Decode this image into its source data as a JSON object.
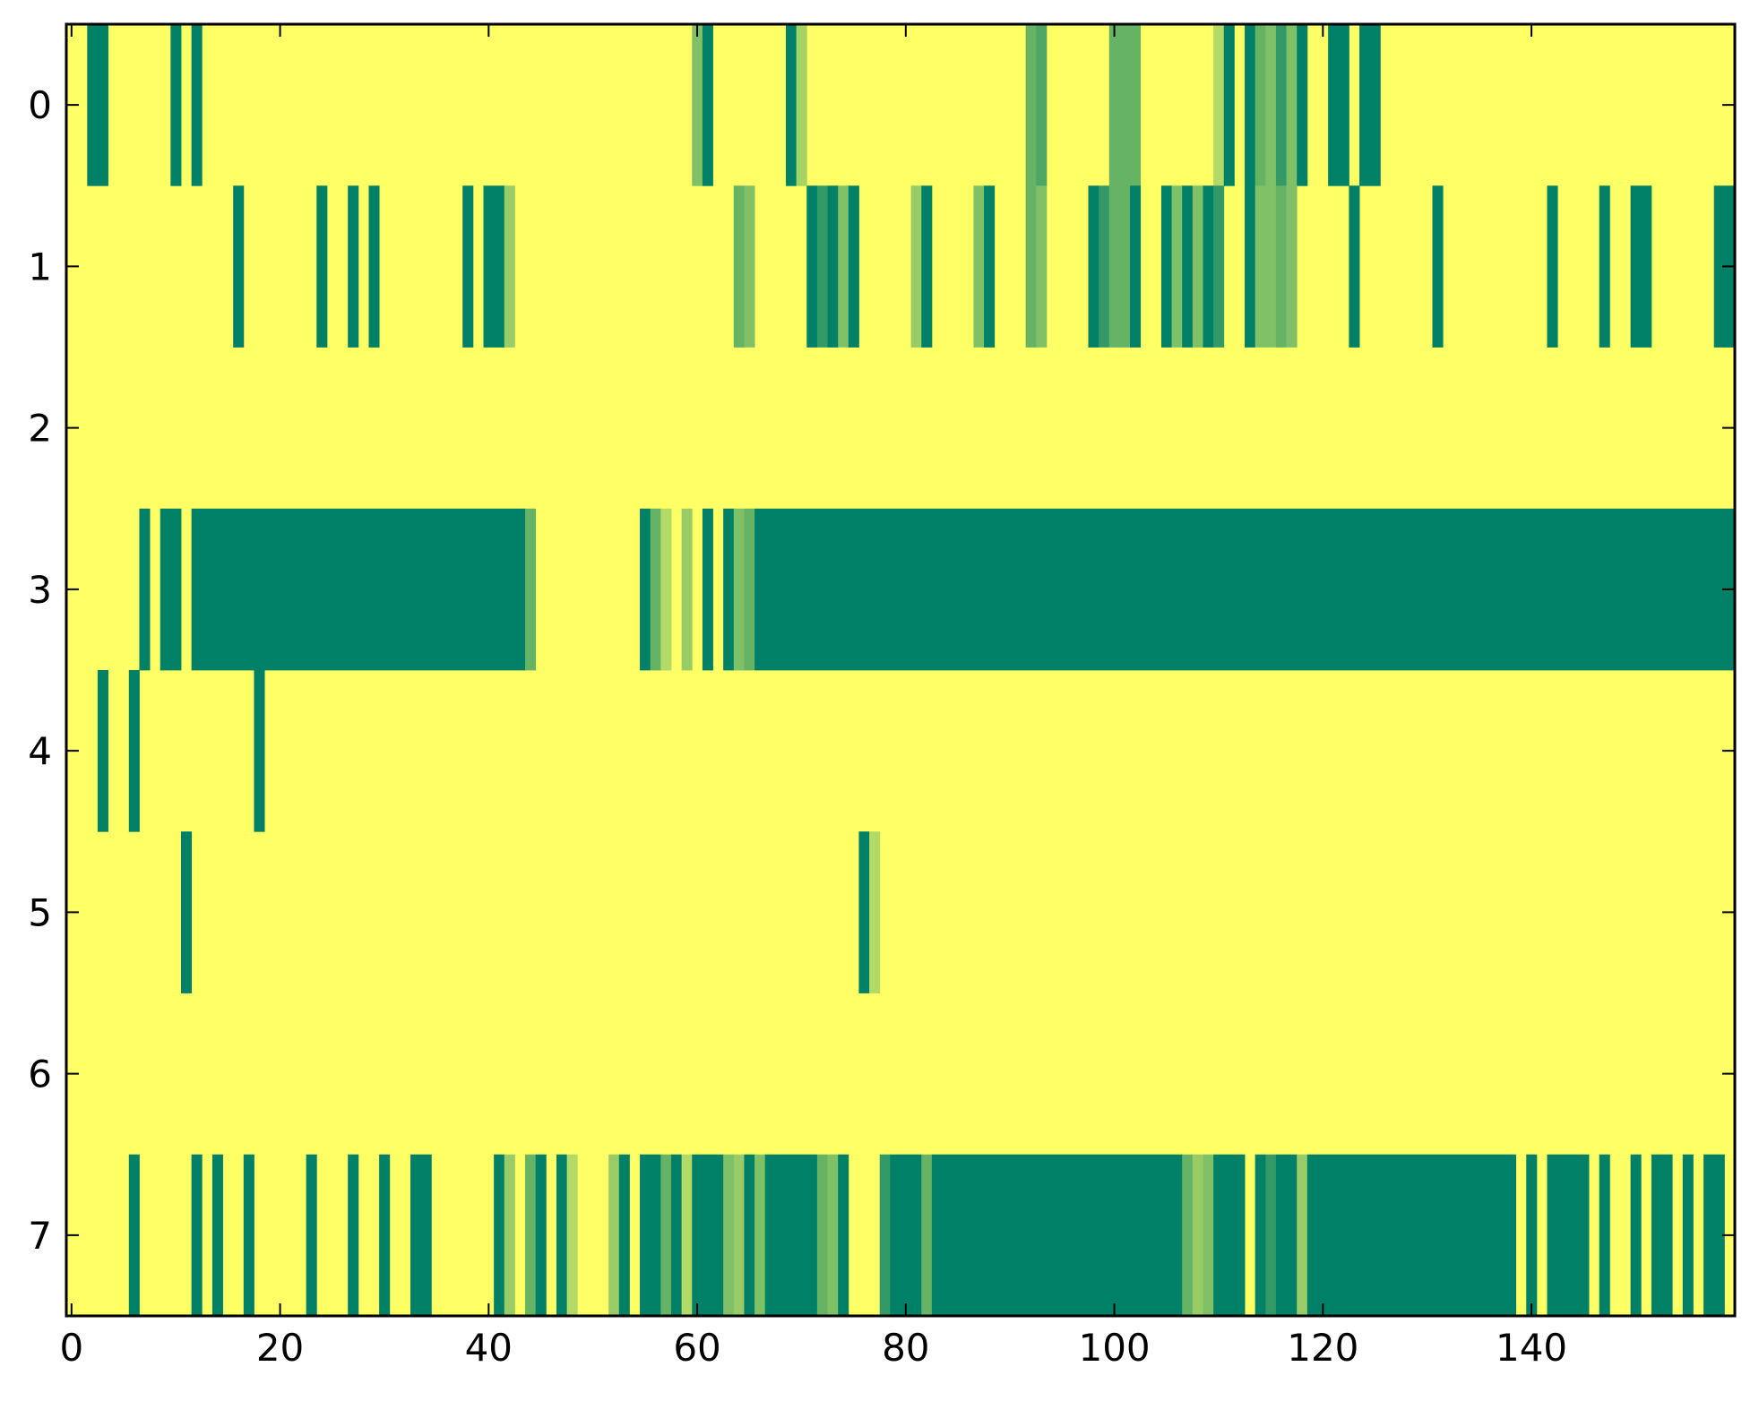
{
  "chart_data": {
    "type": "heatmap",
    "title": "",
    "xlabel": "",
    "ylabel": "",
    "n_cols": 160,
    "n_rows": 8,
    "xlim": [
      -0.5,
      159.5
    ],
    "ylim": [
      7.5,
      -0.5
    ],
    "x_ticks": [
      0,
      20,
      40,
      60,
      80,
      100,
      120,
      140
    ],
    "y_ticks": [
      0,
      1,
      2,
      3,
      4,
      5,
      6,
      7
    ],
    "x_tick_labels": [
      "0",
      "20",
      "40",
      "60",
      "80",
      "100",
      "120",
      "140"
    ],
    "y_tick_labels": [
      "0",
      "1",
      "2",
      "3",
      "4",
      "5",
      "6",
      "7"
    ],
    "grid": false,
    "colormap": "summer_r",
    "colors": {
      "low": "#ffff66",
      "high": "#008066",
      "levels": [
        "#ffff66",
        "#d9ec66",
        "#a9d466",
        "#7fbf66",
        "#4ca566",
        "#008066"
      ]
    },
    "default_value": 0.0,
    "rows": [
      {
        "row": 0,
        "segments": [
          [
            2,
            3,
            1.0
          ],
          [
            10,
            10,
            1.0
          ],
          [
            12,
            12,
            1.0
          ],
          [
            60,
            60,
            0.5
          ],
          [
            61,
            61,
            1.0
          ],
          [
            69,
            69,
            1.0
          ],
          [
            70,
            70,
            0.35
          ],
          [
            92,
            92,
            0.6
          ],
          [
            93,
            93,
            0.7
          ],
          [
            100,
            100,
            0.6
          ],
          [
            101,
            102,
            0.6
          ],
          [
            110,
            110,
            0.3
          ],
          [
            111,
            111,
            1.0
          ],
          [
            113,
            113,
            1.0
          ],
          [
            114,
            114,
            0.6
          ],
          [
            115,
            115,
            0.5
          ],
          [
            116,
            116,
            0.8
          ],
          [
            117,
            117,
            0.5
          ],
          [
            118,
            118,
            1.0
          ],
          [
            121,
            122,
            1.0
          ],
          [
            124,
            125,
            1.0
          ]
        ]
      },
      {
        "row": 1,
        "segments": [
          [
            16,
            16,
            1.0
          ],
          [
            24,
            24,
            1.0
          ],
          [
            27,
            27,
            1.0
          ],
          [
            29,
            29,
            1.0
          ],
          [
            38,
            38,
            1.0
          ],
          [
            40,
            41,
            1.0
          ],
          [
            42,
            42,
            0.4
          ],
          [
            64,
            64,
            0.6
          ],
          [
            65,
            65,
            0.5
          ],
          [
            71,
            71,
            1.0
          ],
          [
            72,
            72,
            0.8
          ],
          [
            73,
            73,
            1.0
          ],
          [
            74,
            74,
            0.5
          ],
          [
            75,
            75,
            1.0
          ],
          [
            81,
            81,
            0.4
          ],
          [
            82,
            82,
            1.0
          ],
          [
            87,
            87,
            0.5
          ],
          [
            88,
            88,
            1.0
          ],
          [
            92,
            92,
            0.6
          ],
          [
            93,
            93,
            0.5
          ],
          [
            98,
            98,
            1.0
          ],
          [
            99,
            99,
            0.8
          ],
          [
            100,
            101,
            0.6
          ],
          [
            102,
            102,
            1.0
          ],
          [
            105,
            105,
            1.0
          ],
          [
            106,
            106,
            0.5
          ],
          [
            107,
            107,
            1.0
          ],
          [
            108,
            108,
            0.5
          ],
          [
            109,
            109,
            1.0
          ],
          [
            110,
            110,
            0.8
          ],
          [
            113,
            113,
            1.0
          ],
          [
            114,
            114,
            0.5
          ],
          [
            115,
            115,
            0.5
          ],
          [
            116,
            116,
            0.6
          ],
          [
            117,
            117,
            0.5
          ],
          [
            123,
            123,
            1.0
          ],
          [
            131,
            131,
            1.0
          ],
          [
            142,
            142,
            1.0
          ],
          [
            147,
            147,
            1.0
          ],
          [
            150,
            151,
            1.0
          ],
          [
            158,
            159,
            1.0
          ]
        ]
      },
      {
        "row": 2,
        "segments": []
      },
      {
        "row": 3,
        "segments": [
          [
            7,
            7,
            1.0
          ],
          [
            9,
            10,
            1.0
          ],
          [
            12,
            43,
            1.0
          ],
          [
            44,
            44,
            0.6
          ],
          [
            55,
            55,
            1.0
          ],
          [
            56,
            56,
            0.6
          ],
          [
            57,
            57,
            0.3
          ],
          [
            59,
            59,
            0.4
          ],
          [
            61,
            61,
            1.0
          ],
          [
            63,
            63,
            1.0
          ],
          [
            64,
            64,
            0.5
          ],
          [
            65,
            65,
            0.6
          ],
          [
            66,
            159,
            1.0
          ]
        ]
      },
      {
        "row": 4,
        "segments": [
          [
            3,
            3,
            1.0
          ],
          [
            6,
            6,
            1.0
          ],
          [
            18,
            18,
            1.0
          ]
        ]
      },
      {
        "row": 5,
        "segments": [
          [
            11,
            11,
            1.0
          ],
          [
            76,
            76,
            1.0
          ],
          [
            77,
            77,
            0.3
          ]
        ]
      },
      {
        "row": 6,
        "segments": []
      },
      {
        "row": 7,
        "segments": [
          [
            6,
            6,
            1.0
          ],
          [
            12,
            12,
            1.0
          ],
          [
            14,
            14,
            1.0
          ],
          [
            17,
            17,
            1.0
          ],
          [
            23,
            23,
            1.0
          ],
          [
            27,
            27,
            1.0
          ],
          [
            30,
            30,
            1.0
          ],
          [
            33,
            34,
            1.0
          ],
          [
            41,
            41,
            1.0
          ],
          [
            42,
            42,
            0.4
          ],
          [
            44,
            44,
            0.6
          ],
          [
            45,
            45,
            1.0
          ],
          [
            47,
            47,
            1.0
          ],
          [
            48,
            48,
            0.3
          ],
          [
            52,
            52,
            0.4
          ],
          [
            53,
            53,
            1.0
          ],
          [
            55,
            56,
            1.0
          ],
          [
            57,
            57,
            0.6
          ],
          [
            58,
            58,
            1.0
          ],
          [
            59,
            59,
            0.3
          ],
          [
            60,
            62,
            1.0
          ],
          [
            63,
            63,
            0.5
          ],
          [
            64,
            64,
            0.4
          ],
          [
            65,
            65,
            1.0
          ],
          [
            66,
            66,
            0.5
          ],
          [
            67,
            67,
            1.0
          ],
          [
            68,
            71,
            1.0
          ],
          [
            72,
            72,
            0.6
          ],
          [
            73,
            73,
            0.5
          ],
          [
            74,
            74,
            1.0
          ],
          [
            78,
            78,
            0.8
          ],
          [
            79,
            81,
            1.0
          ],
          [
            82,
            82,
            0.6
          ],
          [
            83,
            106,
            1.0
          ],
          [
            107,
            107,
            0.6
          ],
          [
            108,
            108,
            0.4
          ],
          [
            109,
            109,
            0.5
          ],
          [
            110,
            112,
            1.0
          ],
          [
            114,
            114,
            1.0
          ],
          [
            115,
            115,
            0.8
          ],
          [
            116,
            117,
            1.0
          ],
          [
            118,
            118,
            0.4
          ],
          [
            119,
            138,
            1.0
          ],
          [
            140,
            140,
            1.0
          ],
          [
            142,
            145,
            1.0
          ],
          [
            147,
            147,
            1.0
          ],
          [
            150,
            150,
            1.0
          ],
          [
            152,
            153,
            1.0
          ],
          [
            155,
            155,
            1.0
          ],
          [
            157,
            158,
            1.0
          ]
        ]
      }
    ]
  }
}
